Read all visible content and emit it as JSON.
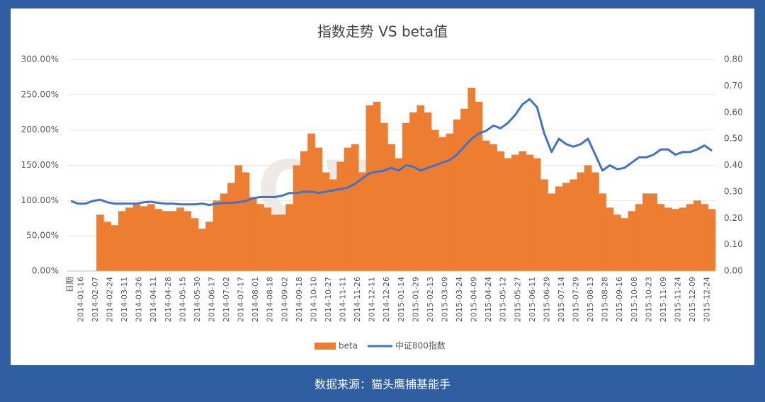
{
  "chart_data": {
    "type": "bar_line",
    "title": "指数走势 VS beta值",
    "xlabel": "日期",
    "source": "数据来源：猫头鹰捕基能手",
    "watermark": [
      "OWLS",
      "猫头鹰基金研究院"
    ],
    "categories": [
      null,
      "2014-01-16",
      null,
      "2014-02-07",
      null,
      "2014-02-24",
      null,
      "2014-03-11",
      null,
      "2014-03-26",
      null,
      "2014-04-11",
      null,
      "2014-04-28",
      null,
      "2014-05-15",
      null,
      "2014-05-30",
      null,
      "2014-06-17",
      null,
      "2014-07-02",
      null,
      "2014-07-17",
      null,
      "2014-08-01",
      null,
      "2014-08-18",
      null,
      "2014-09-02",
      null,
      "2014-09-18",
      null,
      "2014-10-10",
      null,
      "2014-10-27",
      null,
      "2014-11-11",
      null,
      "2014-11-26",
      null,
      "2014-12-11",
      null,
      "2014-12-26",
      null,
      "2015-01-14",
      null,
      "2015-01-29",
      null,
      "2015-02-13",
      null,
      "2015-03-09",
      null,
      "2015-03-24",
      null,
      "2015-04-09",
      null,
      "2015-04-24",
      null,
      "2015-05-12",
      null,
      "2015-05-27",
      null,
      "2015-06-11",
      null,
      "2015-06-29",
      null,
      "2015-07-14",
      null,
      "2015-07-29",
      null,
      "2015-08-13",
      null,
      "2015-08-28",
      null,
      "2015-09-16",
      null,
      "2015-10-08",
      null,
      "2015-10-23",
      null,
      "2015-11-09",
      null,
      "2015-11-24",
      null,
      "2015-12-09",
      null,
      "2015-12-24",
      null
    ],
    "series": [
      {
        "name": "beta",
        "type": "bar",
        "color": "#ed7d31",
        "values": [
          0,
          0,
          0,
          0,
          80,
          70,
          65,
          85,
          90,
          95,
          92,
          95,
          88,
          85,
          85,
          90,
          85,
          75,
          60,
          70,
          100,
          110,
          125,
          150,
          140,
          105,
          95,
          90,
          80,
          80,
          95,
          150,
          170,
          195,
          175,
          140,
          130,
          155,
          175,
          180,
          140,
          235,
          240,
          210,
          180,
          160,
          210,
          225,
          235,
          225,
          200,
          190,
          195,
          215,
          230,
          260,
          240,
          185,
          180,
          170,
          160,
          165,
          170,
          165,
          160,
          130,
          110,
          120,
          125,
          130,
          140,
          150,
          140,
          110,
          90,
          80,
          75,
          85,
          95,
          110,
          110,
          95,
          90,
          88,
          90,
          95,
          100,
          95,
          88
        ]
      },
      {
        "name": "中证800指数",
        "type": "line",
        "axis": "y2",
        "color": "#4472c4",
        "values": [
          0.265,
          0.255,
          0.255,
          0.265,
          0.27,
          0.26,
          0.255,
          0.255,
          0.255,
          0.255,
          0.26,
          0.262,
          0.258,
          0.255,
          0.255,
          0.252,
          0.252,
          0.252,
          0.255,
          0.25,
          0.255,
          0.258,
          0.258,
          0.26,
          0.265,
          0.275,
          0.28,
          0.28,
          0.28,
          0.285,
          0.295,
          0.295,
          0.3,
          0.3,
          0.295,
          0.3,
          0.305,
          0.31,
          0.315,
          0.33,
          0.35,
          0.37,
          0.375,
          0.38,
          0.39,
          0.38,
          0.4,
          0.395,
          0.38,
          0.39,
          0.4,
          0.41,
          0.42,
          0.44,
          0.47,
          0.5,
          0.52,
          0.53,
          0.55,
          0.54,
          0.56,
          0.59,
          0.63,
          0.65,
          0.62,
          0.52,
          0.45,
          0.5,
          0.48,
          0.47,
          0.48,
          0.5,
          0.44,
          0.38,
          0.4,
          0.385,
          0.39,
          0.41,
          0.43,
          0.43,
          0.44,
          0.46,
          0.46,
          0.44,
          0.45,
          0.45,
          0.46,
          0.475,
          0.455
        ]
      }
    ],
    "ylim": [
      0,
      300
    ],
    "yticks": [
      {
        "value": 0,
        "label": "0.00%"
      },
      {
        "value": 50,
        "label": "50.00%"
      },
      {
        "value": 100,
        "label": "100.00%"
      },
      {
        "value": 150,
        "label": "150.00%"
      },
      {
        "value": 200,
        "label": "200.00%"
      },
      {
        "value": 250,
        "label": "250.00%"
      },
      {
        "value": 300,
        "label": "300.00%"
      }
    ],
    "y2lim": [
      0,
      0.8
    ],
    "y2ticks": [
      {
        "value": 0,
        "label": "0.00"
      },
      {
        "value": 0.1,
        "label": "0.10"
      },
      {
        "value": 0.2,
        "label": "0.20"
      },
      {
        "value": 0.3,
        "label": "0.30"
      },
      {
        "value": 0.4,
        "label": "0.40"
      },
      {
        "value": 0.5,
        "label": "0.50"
      },
      {
        "value": 0.6,
        "label": "0.60"
      },
      {
        "value": 0.7,
        "label": "0.70"
      },
      {
        "value": 0.8,
        "label": "0.80"
      }
    ],
    "legend": "bottom"
  }
}
